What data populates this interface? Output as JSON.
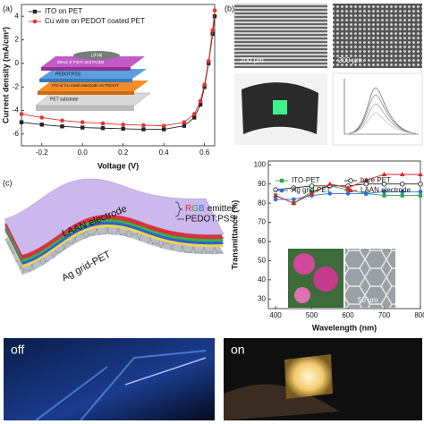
{
  "panels": {
    "a": "(a)",
    "b": "(b)",
    "c": "(c)"
  },
  "chart_data": [
    {
      "type": "line",
      "xlabel": "Voltage (V)",
      "ylabel": "Current density (mA/cm²)",
      "x": [
        -0.3,
        -0.2,
        -0.1,
        0,
        0.1,
        0.2,
        0.3,
        0.4,
        0.5,
        0.55,
        0.58,
        0.6,
        0.62,
        0.64,
        0.65
      ],
      "series": [
        {
          "name": "ITO on PET",
          "color": "#222222",
          "marker": "square",
          "values": [
            -5.0,
            -5.2,
            -5.35,
            -5.45,
            -5.5,
            -5.55,
            -5.6,
            -5.6,
            -5.3,
            -4.6,
            -3.5,
            -2.0,
            0,
            2.5,
            4
          ]
        },
        {
          "name": "Cu wire on PEDOT coated PET",
          "color": "#e8322a",
          "marker": "circle",
          "values": [
            -4.3,
            -4.6,
            -4.85,
            -5.0,
            -5.1,
            -5.2,
            -5.25,
            -5.3,
            -5.0,
            -4.3,
            -3.2,
            -1.8,
            0.2,
            2.8,
            4.5
          ]
        }
      ],
      "xlim": [
        -0.3,
        0.65
      ],
      "xticks": [
        -0.2,
        {
          "value": 0,
          "label": "0.0"
        },
        0.2,
        0.4,
        0.6
      ],
      "ylim": [
        -7,
        5
      ],
      "yticks": [
        -6,
        -4,
        -2,
        0,
        2,
        4
      ],
      "legend": "upper left",
      "legend_columns": 1
    },
    {
      "type": "line",
      "xlabel": "Wavelength (nm)",
      "ylabel": "Transmittance (%)",
      "x": [
        400,
        450,
        500,
        550,
        600,
        650,
        700,
        750,
        800
      ],
      "series": [
        {
          "name": "ITO-PET",
          "color": "#2aa84a",
          "marker": "square",
          "values": [
            84,
            80,
            86,
            89,
            87,
            85,
            84,
            84,
            84
          ]
        },
        {
          "name": "bare PET",
          "color": "#222222",
          "marker": "open-circle",
          "values": [
            87,
            88,
            89,
            89,
            89,
            90,
            90,
            90,
            90
          ]
        },
        {
          "name": "Ag grid-PET",
          "color": "#2f6fd6",
          "marker": "circle",
          "values": [
            82,
            82,
            84,
            85,
            85,
            85,
            86,
            86,
            86
          ]
        },
        {
          "name": "LAAN electrode",
          "color": "#d8242c",
          "marker": "triangle",
          "values": [
            84,
            80,
            85,
            90,
            88,
            92,
            95,
            95,
            95
          ]
        }
      ],
      "xlim": [
        380,
        800
      ],
      "xticks": [
        400,
        500,
        600,
        700,
        800
      ],
      "ylim": [
        25,
        102
      ],
      "yticks": [
        30,
        40,
        50,
        60,
        70,
        80,
        90,
        100
      ],
      "legend": "upper left",
      "legend_columns": 2
    }
  ],
  "inset_a": {
    "layers": [
      "LiF/Al",
      "Blend of P3HT and PCBM",
      "PEDOT:PSS",
      "ITO or Cu mesh electrode on PEDOT",
      "PET substrate"
    ]
  },
  "panel_b": {
    "scale_bars": [
      "200 µm",
      "200 µm"
    ]
  },
  "diagram_c": {
    "top": "LAAN electrode",
    "emitter": [
      "R",
      "G",
      "B",
      "emitter"
    ],
    "pedot": "PEDOT:PSS",
    "substrate": "Ag grid-PET"
  },
  "inset_c": {
    "scale_bar": "50 µm"
  },
  "photos": {
    "off": "off",
    "on": "on"
  }
}
